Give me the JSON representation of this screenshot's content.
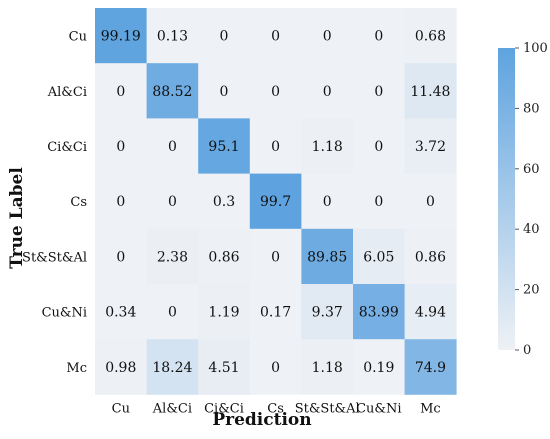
{
  "chart_data": {
    "type": "heatmap",
    "xlabel": "Prediction",
    "ylabel": "True Label",
    "x_categories": [
      "Cu",
      "Al&Ci",
      "Ci&Ci",
      "Cs",
      "St&St&Al",
      "Cu&Ni",
      "Mc"
    ],
    "y_categories": [
      "Cu",
      "Al&Ci",
      "Ci&Ci",
      "Cs",
      "St&St&Al",
      "Cu&Ni",
      "Mc"
    ],
    "values": [
      [
        "99.19",
        "0.13",
        "0",
        "0",
        "0",
        "0",
        "0.68"
      ],
      [
        "0",
        "88.52",
        "0",
        "0",
        "0",
        "0",
        "11.48"
      ],
      [
        "0",
        "0",
        "95.1",
        "0",
        "1.18",
        "0",
        "3.72"
      ],
      [
        "0",
        "0",
        "0.3",
        "99.7",
        "0",
        "0",
        "0"
      ],
      [
        "0",
        "2.38",
        "0.86",
        "0",
        "89.85",
        "6.05",
        "0.86"
      ],
      [
        "0.34",
        "0",
        "1.19",
        "0.17",
        "9.37",
        "83.99",
        "4.94"
      ],
      [
        "0.98",
        "18.24",
        "4.51",
        "0",
        "1.18",
        "0.19",
        "74.9"
      ]
    ],
    "colorbar": {
      "range": [
        0,
        100
      ],
      "ticks": [
        "0",
        "20",
        "40",
        "60",
        "80",
        "100"
      ],
      "color_low": "#eef1f5",
      "color_high": "#5ea3df"
    },
    "grid": false
  }
}
